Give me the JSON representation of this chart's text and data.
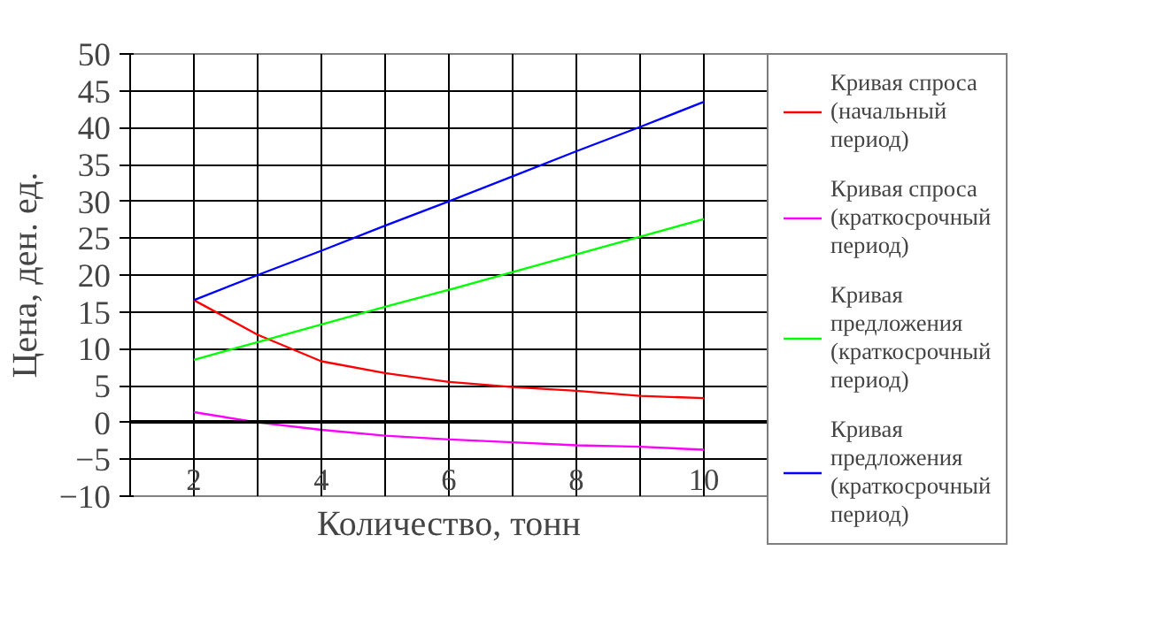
{
  "chart_data": {
    "type": "line",
    "xlabel": "Количество, тонн",
    "ylabel": "Цена, ден. ед.",
    "x": [
      2,
      3,
      4,
      5,
      6,
      7,
      8,
      9,
      10
    ],
    "series": [
      {
        "name": "Кривая спроса (начальный период)",
        "color": "#ff0000",
        "values": [
          16.6,
          11.9,
          8.3,
          6.7,
          5.5,
          4.8,
          4.3,
          3.6,
          3.3
        ]
      },
      {
        "name": "Кривая спроса (краткосрочный период)",
        "color": "#ff00ff",
        "values": [
          1.4,
          0,
          -1,
          -1.8,
          -2.3,
          -2.7,
          -3.1,
          -3.3,
          -3.7
        ]
      },
      {
        "name": "Кривая предложения (краткосрочный период)",
        "color": "#00ff00",
        "values": [
          8.5,
          10.9,
          13.3,
          15.7,
          18,
          20.4,
          22.8,
          25.2,
          27.6
        ]
      },
      {
        "name": "Кривая предложения (краткосрочный период)",
        "color": "#0000ff",
        "values": [
          16.6,
          20,
          23.3,
          26.7,
          30,
          33.4,
          36.8,
          40.1,
          43.5
        ]
      }
    ],
    "xlim": [
      1,
      11
    ],
    "ylim": [
      -10,
      50
    ],
    "xticks": [
      2,
      4,
      6,
      8,
      10
    ],
    "yticks": [
      -10,
      -5,
      0,
      5,
      10,
      15,
      20,
      25,
      30,
      35,
      40,
      45,
      50
    ],
    "grid": true,
    "legend": "right",
    "marker": "none",
    "line_style": "solid"
  }
}
